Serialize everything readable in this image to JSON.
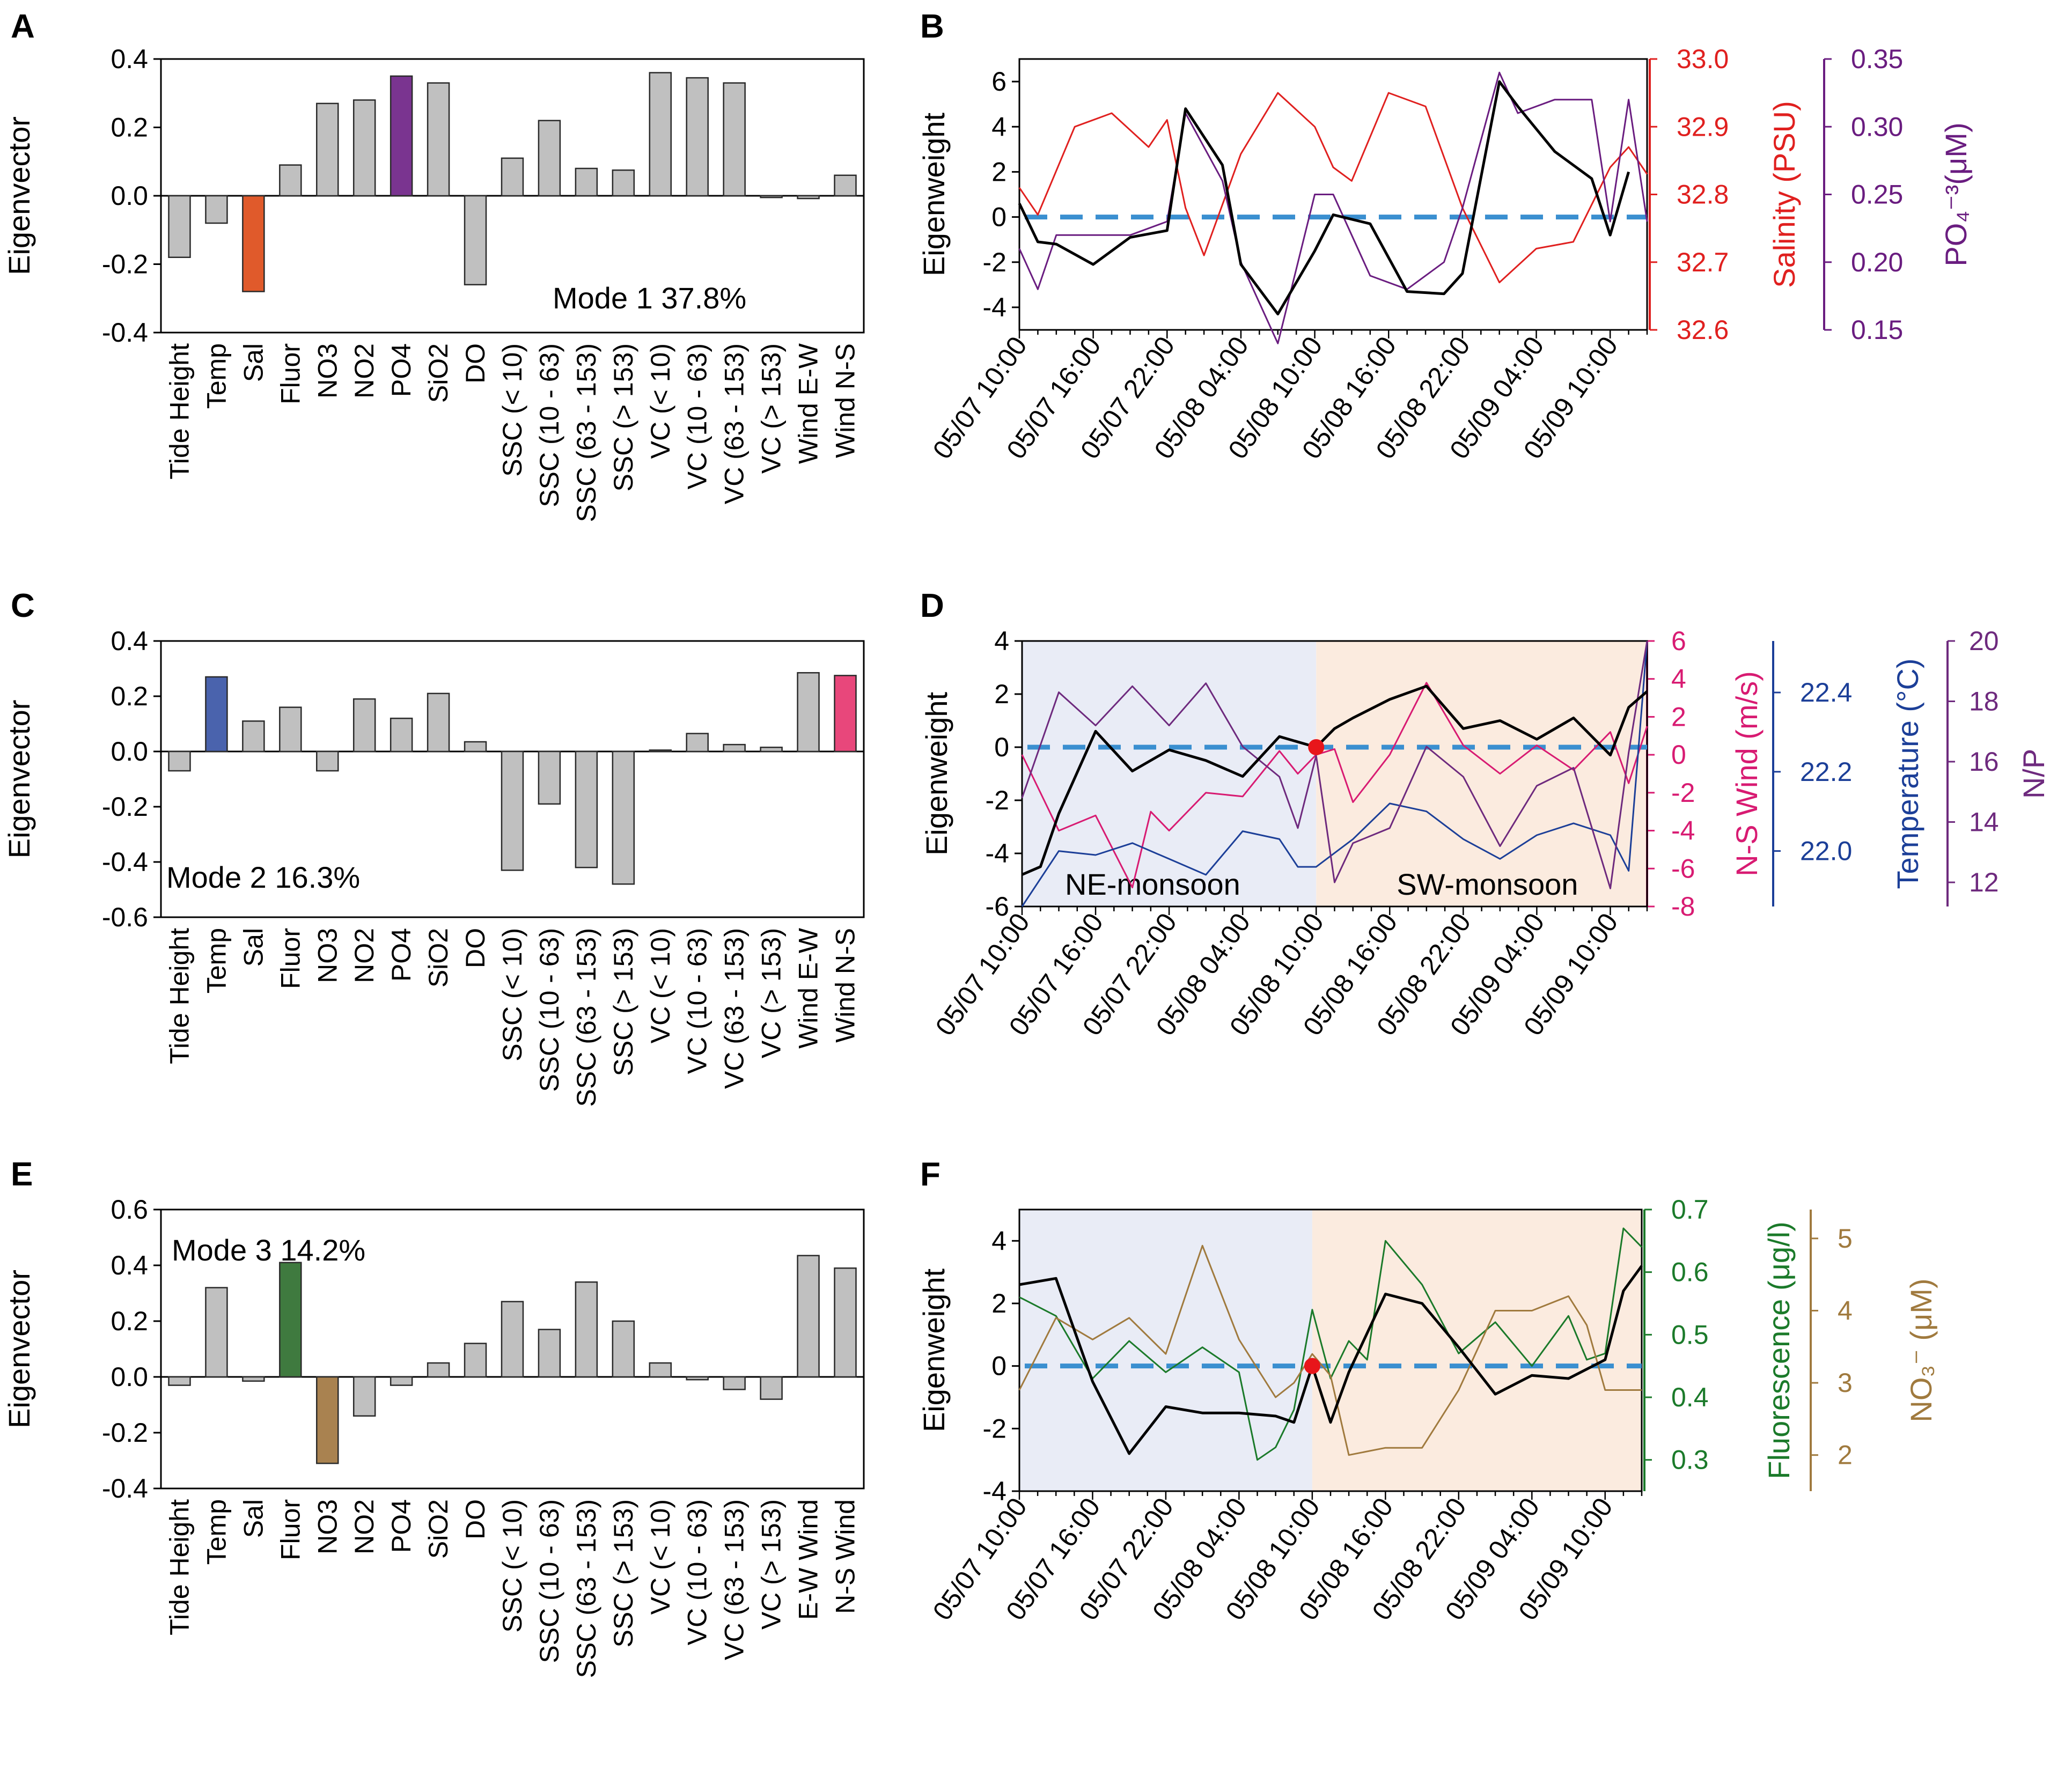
{
  "colors": {
    "gray_bar": "#c0c0c0",
    "orange": "#e05a2b",
    "purple": "#7a3490",
    "blue_bar": "#4a63ad",
    "pink_bar": "#e8477b",
    "green_bar": "#3f7a3f",
    "brown_bar": "#a98250",
    "zero_line": "#3a8fd0",
    "salinity": "#e0201f",
    "po4": "#6a1d80",
    "nswind": "#d81b72",
    "temp": "#1c3f98",
    "np": "#6e2a7e",
    "fluor": "#1b7a2a",
    "no3": "#a07a3e",
    "ne_bg": "#e9ecf6",
    "sw_bg": "#fbebdf"
  },
  "time_ticks": [
    "05/07 10:00",
    "05/07 16:00",
    "05/07 22:00",
    "05/08 04:00",
    "05/08 10:00",
    "05/08 16:00",
    "05/08 22:00",
    "05/09 04:00",
    "05/09 10:00"
  ],
  "chart_data": [
    {
      "id": "A",
      "panel_label": "A",
      "type": "bar",
      "ylabel": "Eigenvector",
      "ylim": [
        -0.4,
        0.4
      ],
      "yticks": [
        "0.4",
        "0.2",
        "0.0",
        "-0.2",
        "-0.4"
      ],
      "annotation": "Mode 1 37.8%",
      "categories": [
        "Tide Height",
        "Temp",
        "Sal",
        "Fluor",
        "NO3",
        "NO2",
        "PO4",
        "SiO2",
        "DO",
        "SSC  (< 10)",
        "SSC (10 - 63)",
        "SSC (63 - 153)",
        "SSC (> 153)",
        "VC  (< 10)",
        "VC  (10 - 63)",
        "VC (63 - 153)",
        "VC (> 153)",
        "Wind E-W",
        "Wind N-S"
      ],
      "values": [
        -0.18,
        -0.08,
        -0.28,
        0.09,
        0.27,
        0.28,
        0.35,
        0.33,
        -0.26,
        0.11,
        0.22,
        0.08,
        0.075,
        0.36,
        0.345,
        0.33,
        -0.005,
        -0.008,
        0.06
      ],
      "highlight": {
        "2": "orange",
        "6": "purple"
      }
    },
    {
      "id": "B",
      "panel_label": "B",
      "type": "line",
      "ylabel": "Eigenweight",
      "ylim": [
        -5,
        7
      ],
      "yticks": [
        "6",
        "4",
        "2",
        "0",
        "-2",
        "-4"
      ],
      "right_axes": [
        {
          "label": "Salinity (PSU)",
          "ticks": [
            "33.0",
            "32.9",
            "32.8",
            "32.7",
            "32.6"
          ],
          "range": [
            32.6,
            33.0
          ],
          "color": "salinity"
        },
        {
          "label": "PO₄⁻³(μM)",
          "ticks": [
            "0.35",
            "0.30",
            "0.25",
            "0.20",
            "0.15"
          ],
          "range": [
            0.15,
            0.35
          ],
          "color": "po4"
        }
      ],
      "series": [
        {
          "name": "Eigenweight",
          "color": "#000000",
          "x": [
            0,
            1,
            2,
            4,
            6,
            8,
            9,
            11,
            12,
            14,
            16,
            17,
            19,
            21,
            23,
            24,
            26,
            27,
            29,
            31,
            32,
            33
          ],
          "values": [
            0.6,
            -1.1,
            -1.2,
            -2.1,
            -0.9,
            -0.6,
            4.8,
            2.3,
            -2.1,
            -4.3,
            -1.5,
            0.1,
            -0.3,
            -3.3,
            -3.4,
            -2.5,
            6.0,
            4.9,
            2.9,
            1.7,
            -0.8,
            2.0
          ]
        },
        {
          "name": "Salinity",
          "color": "salinity",
          "x": [
            0,
            1,
            3,
            5,
            7,
            8,
            9,
            10,
            12,
            14,
            16,
            17,
            18,
            20,
            22,
            24,
            26,
            28,
            30,
            32,
            33,
            34
          ],
          "values": [
            32.81,
            32.77,
            32.9,
            32.92,
            32.87,
            32.91,
            32.78,
            32.71,
            32.86,
            32.95,
            32.9,
            32.84,
            32.82,
            32.95,
            32.93,
            32.78,
            32.67,
            32.72,
            32.73,
            32.84,
            32.87,
            32.83
          ]
        },
        {
          "name": "PO4",
          "color": "po4",
          "x": [
            0,
            1,
            2,
            4,
            6,
            8,
            9,
            11,
            12,
            14,
            16,
            17,
            19,
            21,
            23,
            24,
            26,
            27,
            29,
            31,
            32,
            33,
            34
          ],
          "values": [
            0.21,
            0.18,
            0.22,
            0.22,
            0.22,
            0.23,
            0.31,
            0.26,
            0.2,
            0.14,
            0.25,
            0.25,
            0.19,
            0.18,
            0.2,
            0.24,
            0.34,
            0.31,
            0.32,
            0.32,
            0.23,
            0.32,
            0.23
          ]
        }
      ]
    },
    {
      "id": "C",
      "panel_label": "C",
      "type": "bar",
      "ylabel": "Eigenvector",
      "ylim": [
        -0.6,
        0.4
      ],
      "yticks": [
        "0.4",
        "0.2",
        "0.0",
        "-0.2",
        "-0.4",
        "-0.6"
      ],
      "annotation": "Mode 2 16.3%",
      "categories": [
        "Tide Height",
        "Temp",
        "Sal",
        "Fluor",
        "NO3",
        "NO2",
        "PO4",
        "SiO2",
        "DO",
        "SSC  (< 10)",
        "SSC (10 - 63)",
        "SSC (63 - 153)",
        "SSC (> 153)",
        "VC  (< 10)",
        "VC  (10 - 63)",
        "VC (63 - 153)",
        "VC (> 153)",
        "Wind E-W",
        "Wind N-S"
      ],
      "values": [
        -0.07,
        0.27,
        0.11,
        0.16,
        -0.07,
        0.19,
        0.12,
        0.21,
        0.035,
        -0.43,
        -0.19,
        -0.42,
        -0.48,
        0.005,
        0.065,
        0.025,
        0.015,
        0.285,
        0.275
      ],
      "highlight": {
        "1": "blue_bar",
        "18": "pink_bar"
      }
    },
    {
      "id": "D",
      "panel_label": "D",
      "type": "line",
      "ylabel": "Eigenweight",
      "ylim": [
        -6,
        4
      ],
      "yticks": [
        "4",
        "2",
        "0",
        "-2",
        "-4",
        "-6"
      ],
      "regions": [
        "NE-monsoon",
        "SW-monsoon"
      ],
      "right_axes": [
        {
          "label": "N-S Wind (m/s)",
          "ticks": [
            "6",
            "4",
            "2",
            "0",
            "-2",
            "-4",
            "-6",
            "-8"
          ],
          "range": [
            -8,
            6
          ],
          "color": "nswind"
        },
        {
          "label": "Temperature (°C)",
          "ticks": [
            "22.4",
            "22.2",
            "22.0"
          ],
          "range": [
            21.86,
            22.53
          ],
          "color": "temp"
        },
        {
          "label": "N/P",
          "ticks": [
            "20",
            "18",
            "16",
            "14",
            "12"
          ],
          "range": [
            11.2,
            20
          ],
          "color": "np"
        }
      ],
      "series": [
        {
          "name": "Eigenweight",
          "color": "#000000",
          "x": [
            0,
            1,
            2,
            4,
            6,
            8,
            10,
            12,
            14,
            16,
            17,
            18,
            20,
            22,
            24,
            26,
            28,
            30,
            32,
            33,
            34
          ],
          "values": [
            -4.8,
            -4.5,
            -2.5,
            0.6,
            -0.9,
            -0.1,
            -0.5,
            -1.1,
            0.4,
            0.0,
            0.7,
            1.1,
            1.8,
            2.3,
            0.7,
            1.0,
            0.3,
            1.1,
            -0.3,
            1.5,
            2.1
          ]
        },
        {
          "name": "N-S Wind",
          "color": "nswind",
          "x": [
            0,
            1,
            2,
            4,
            6,
            7,
            8,
            10,
            12,
            14,
            15,
            16,
            17,
            18,
            20,
            22,
            24,
            26,
            28,
            30,
            32,
            33,
            34
          ],
          "values": [
            0,
            -2,
            -4,
            -3.2,
            -7,
            -3,
            -4,
            -2,
            -2.2,
            0.2,
            -1,
            0,
            0.3,
            -2.5,
            0,
            3.8,
            0.5,
            -1,
            0.5,
            -0.8,
            1.2,
            -1.5,
            1.5
          ]
        },
        {
          "name": "Temperature",
          "color": "temp",
          "x": [
            0,
            2,
            4,
            6,
            8,
            10,
            12,
            14,
            15,
            16,
            18,
            20,
            22,
            24,
            26,
            28,
            30,
            32,
            33,
            34
          ],
          "values": [
            21.86,
            22.0,
            21.99,
            22.02,
            21.98,
            21.94,
            22.05,
            22.03,
            21.96,
            21.96,
            22.03,
            22.12,
            22.1,
            22.03,
            21.98,
            22.04,
            22.07,
            22.04,
            21.95,
            22.53
          ]
        },
        {
          "name": "N/P",
          "color": "np",
          "x": [
            0,
            2,
            4,
            6,
            8,
            10,
            12,
            14,
            15,
            16,
            17,
            18,
            20,
            22,
            24,
            26,
            28,
            30,
            32,
            33,
            34
          ],
          "values": [
            14.8,
            18.3,
            17.2,
            18.5,
            17.2,
            18.6,
            16.5,
            15.5,
            13.8,
            16.2,
            12.0,
            13.3,
            13.8,
            16.5,
            15.5,
            13.2,
            15.2,
            15.8,
            11.8,
            16.3,
            20.0
          ]
        }
      ]
    },
    {
      "id": "E",
      "panel_label": "E",
      "type": "bar",
      "ylabel": "Eigenvector",
      "ylim": [
        -0.4,
        0.6
      ],
      "yticks": [
        "0.6",
        "0.4",
        "0.2",
        "0.0",
        "-0.2",
        "-0.4"
      ],
      "annotation": "Mode 3 14.2%",
      "categories": [
        "Tide Height",
        "Temp",
        "Sal",
        "Fluor",
        "NO3",
        "NO2",
        "PO4",
        "SiO2",
        "DO",
        "SSC  (< 10)",
        "SSC (10 - 63)",
        "SSC (63 - 153)",
        "SSC (> 153)",
        "VC  (< 10)",
        "VC  (10 - 63)",
        "VC (63 - 153)",
        "VC (> 153)",
        "E-W Wind",
        "N-S Wind"
      ],
      "values": [
        -0.03,
        0.32,
        -0.015,
        0.41,
        -0.31,
        -0.14,
        -0.03,
        0.05,
        0.12,
        0.27,
        0.17,
        0.34,
        0.2,
        0.05,
        -0.01,
        -0.045,
        -0.08,
        0.435,
        0.39
      ],
      "highlight": {
        "3": "green_bar",
        "4": "brown_bar"
      }
    },
    {
      "id": "F",
      "panel_label": "F",
      "type": "line",
      "ylabel": "Eigenweight",
      "ylim": [
        -4,
        5
      ],
      "yticks": [
        "4",
        "2",
        "0",
        "-2",
        "-4"
      ],
      "right_axes": [
        {
          "label": "Fluorescence (μg/l)",
          "ticks": [
            "0.7",
            "0.6",
            "0.5",
            "0.4",
            "0.3"
          ],
          "range": [
            0.25,
            0.7
          ],
          "color": "fluor"
        },
        {
          "label": "NO₃⁻ (μM)",
          "ticks": [
            "5",
            "4",
            "3",
            "2"
          ],
          "range": [
            1.5,
            5.4
          ],
          "color": "no3"
        }
      ],
      "series": [
        {
          "name": "Eigenweight",
          "color": "#000000",
          "x": [
            0,
            2,
            4,
            6,
            8,
            10,
            12,
            14,
            15,
            16,
            17,
            18,
            20,
            22,
            24,
            26,
            28,
            30,
            32,
            33,
            34
          ],
          "values": [
            2.6,
            2.8,
            -0.5,
            -2.8,
            -1.3,
            -1.5,
            -1.5,
            -1.6,
            -1.8,
            0.0,
            -1.8,
            -0.2,
            2.3,
            2.0,
            0.6,
            -0.9,
            -0.3,
            -0.4,
            0.2,
            2.4,
            3.2
          ]
        },
        {
          "name": "Fluorescence",
          "color": "fluor",
          "x": [
            0,
            2,
            4,
            6,
            8,
            10,
            12,
            13,
            14,
            15,
            16,
            17,
            18,
            19,
            20,
            22,
            24,
            26,
            28,
            30,
            31,
            32,
            33,
            34
          ],
          "values": [
            0.56,
            0.53,
            0.43,
            0.49,
            0.44,
            0.48,
            0.44,
            0.3,
            0.32,
            0.38,
            0.54,
            0.43,
            0.49,
            0.46,
            0.65,
            0.58,
            0.47,
            0.52,
            0.45,
            0.53,
            0.46,
            0.47,
            0.67,
            0.64
          ]
        },
        {
          "name": "NO3",
          "color": "no3",
          "x": [
            0,
            2,
            4,
            6,
            8,
            10,
            12,
            14,
            15,
            16,
            17,
            18,
            20,
            22,
            24,
            26,
            28,
            30,
            31,
            32,
            33,
            34
          ],
          "values": [
            2.9,
            3.9,
            3.6,
            3.9,
            3.4,
            4.9,
            3.6,
            2.8,
            3.0,
            3.4,
            3.1,
            2.0,
            2.1,
            2.1,
            2.9,
            4.0,
            4.0,
            4.2,
            3.8,
            2.9,
            2.9,
            2.9
          ]
        }
      ]
    }
  ]
}
